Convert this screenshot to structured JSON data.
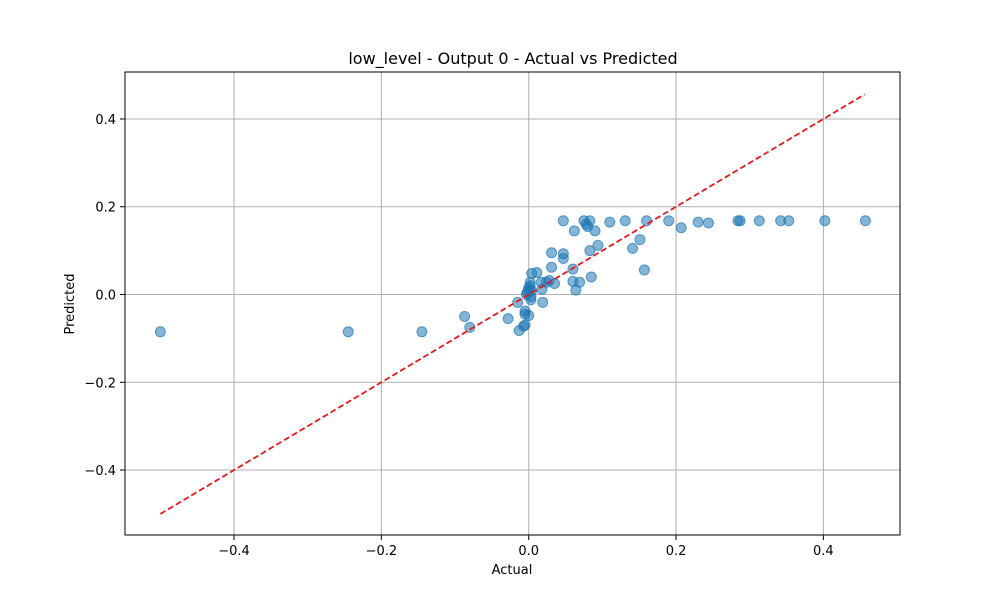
{
  "chart_data": {
    "type": "scatter",
    "title": "low_level - Output 0 - Actual vs Predicted",
    "xlabel": "Actual",
    "ylabel": "Predicted",
    "xlim": [
      -0.548,
      0.504
    ],
    "ylim": [
      -0.548,
      0.507
    ],
    "xticks": [
      -0.4,
      -0.2,
      0.0,
      0.2,
      0.4
    ],
    "yticks": [
      -0.4,
      -0.2,
      0.0,
      0.2,
      0.4
    ],
    "xtick_labels": [
      "−0.4",
      "−0.2",
      "0.0",
      "0.2",
      "0.4"
    ],
    "ytick_labels": [
      "−0.4",
      "−0.2",
      "0.0",
      "0.2",
      "0.4"
    ],
    "grid": true,
    "point_color": "#1f77b4",
    "reference_line": {
      "color": "#e41a1c",
      "style": "dashed",
      "from": [
        -0.5,
        -0.5
      ],
      "to": [
        0.456,
        0.456
      ]
    },
    "points": [
      [
        -0.5,
        -0.085
      ],
      [
        -0.245,
        -0.085
      ],
      [
        -0.145,
        -0.085
      ],
      [
        -0.087,
        -0.05
      ],
      [
        -0.08,
        -0.075
      ],
      [
        -0.028,
        -0.055
      ],
      [
        -0.013,
        -0.082
      ],
      [
        -0.015,
        -0.018
      ],
      [
        -0.007,
        -0.072
      ],
      [
        -0.005,
        -0.07
      ],
      [
        -0.005,
        -0.045
      ],
      [
        -0.005,
        -0.038
      ],
      [
        0.0,
        -0.048
      ],
      [
        -0.003,
        0.0
      ],
      [
        -0.002,
        0.005
      ],
      [
        0.0,
        0.01
      ],
      [
        0.0,
        0.015
      ],
      [
        0.002,
        0.02
      ],
      [
        0.002,
        0.028
      ],
      [
        0.003,
        -0.005
      ],
      [
        0.003,
        -0.012
      ],
      [
        0.004,
        0.008
      ],
      [
        0.004,
        0.048
      ],
      [
        0.011,
        0.05
      ],
      [
        0.017,
        0.028
      ],
      [
        0.018,
        0.012
      ],
      [
        0.019,
        -0.018
      ],
      [
        0.024,
        0.028
      ],
      [
        0.028,
        0.032
      ],
      [
        0.031,
        0.095
      ],
      [
        0.031,
        0.062
      ],
      [
        0.035,
        0.025
      ],
      [
        0.047,
        0.168
      ],
      [
        0.047,
        0.093
      ],
      [
        0.047,
        0.082
      ],
      [
        0.06,
        0.058
      ],
      [
        0.06,
        0.03
      ],
      [
        0.062,
        0.145
      ],
      [
        0.064,
        0.01
      ],
      [
        0.069,
        0.028
      ],
      [
        0.075,
        0.168
      ],
      [
        0.078,
        0.16
      ],
      [
        0.08,
        0.155
      ],
      [
        0.083,
        0.168
      ],
      [
        0.083,
        0.1
      ],
      [
        0.085,
        0.04
      ],
      [
        0.09,
        0.145
      ],
      [
        0.094,
        0.112
      ],
      [
        0.11,
        0.165
      ],
      [
        0.131,
        0.168
      ],
      [
        0.141,
        0.105
      ],
      [
        0.151,
        0.125
      ],
      [
        0.157,
        0.056
      ],
      [
        0.16,
        0.168
      ],
      [
        0.19,
        0.168
      ],
      [
        0.207,
        0.152
      ],
      [
        0.23,
        0.165
      ],
      [
        0.244,
        0.163
      ],
      [
        0.284,
        0.168
      ],
      [
        0.287,
        0.168
      ],
      [
        0.313,
        0.168
      ],
      [
        0.342,
        0.168
      ],
      [
        0.353,
        0.168
      ],
      [
        0.402,
        0.168
      ],
      [
        0.457,
        0.168
      ]
    ]
  }
}
